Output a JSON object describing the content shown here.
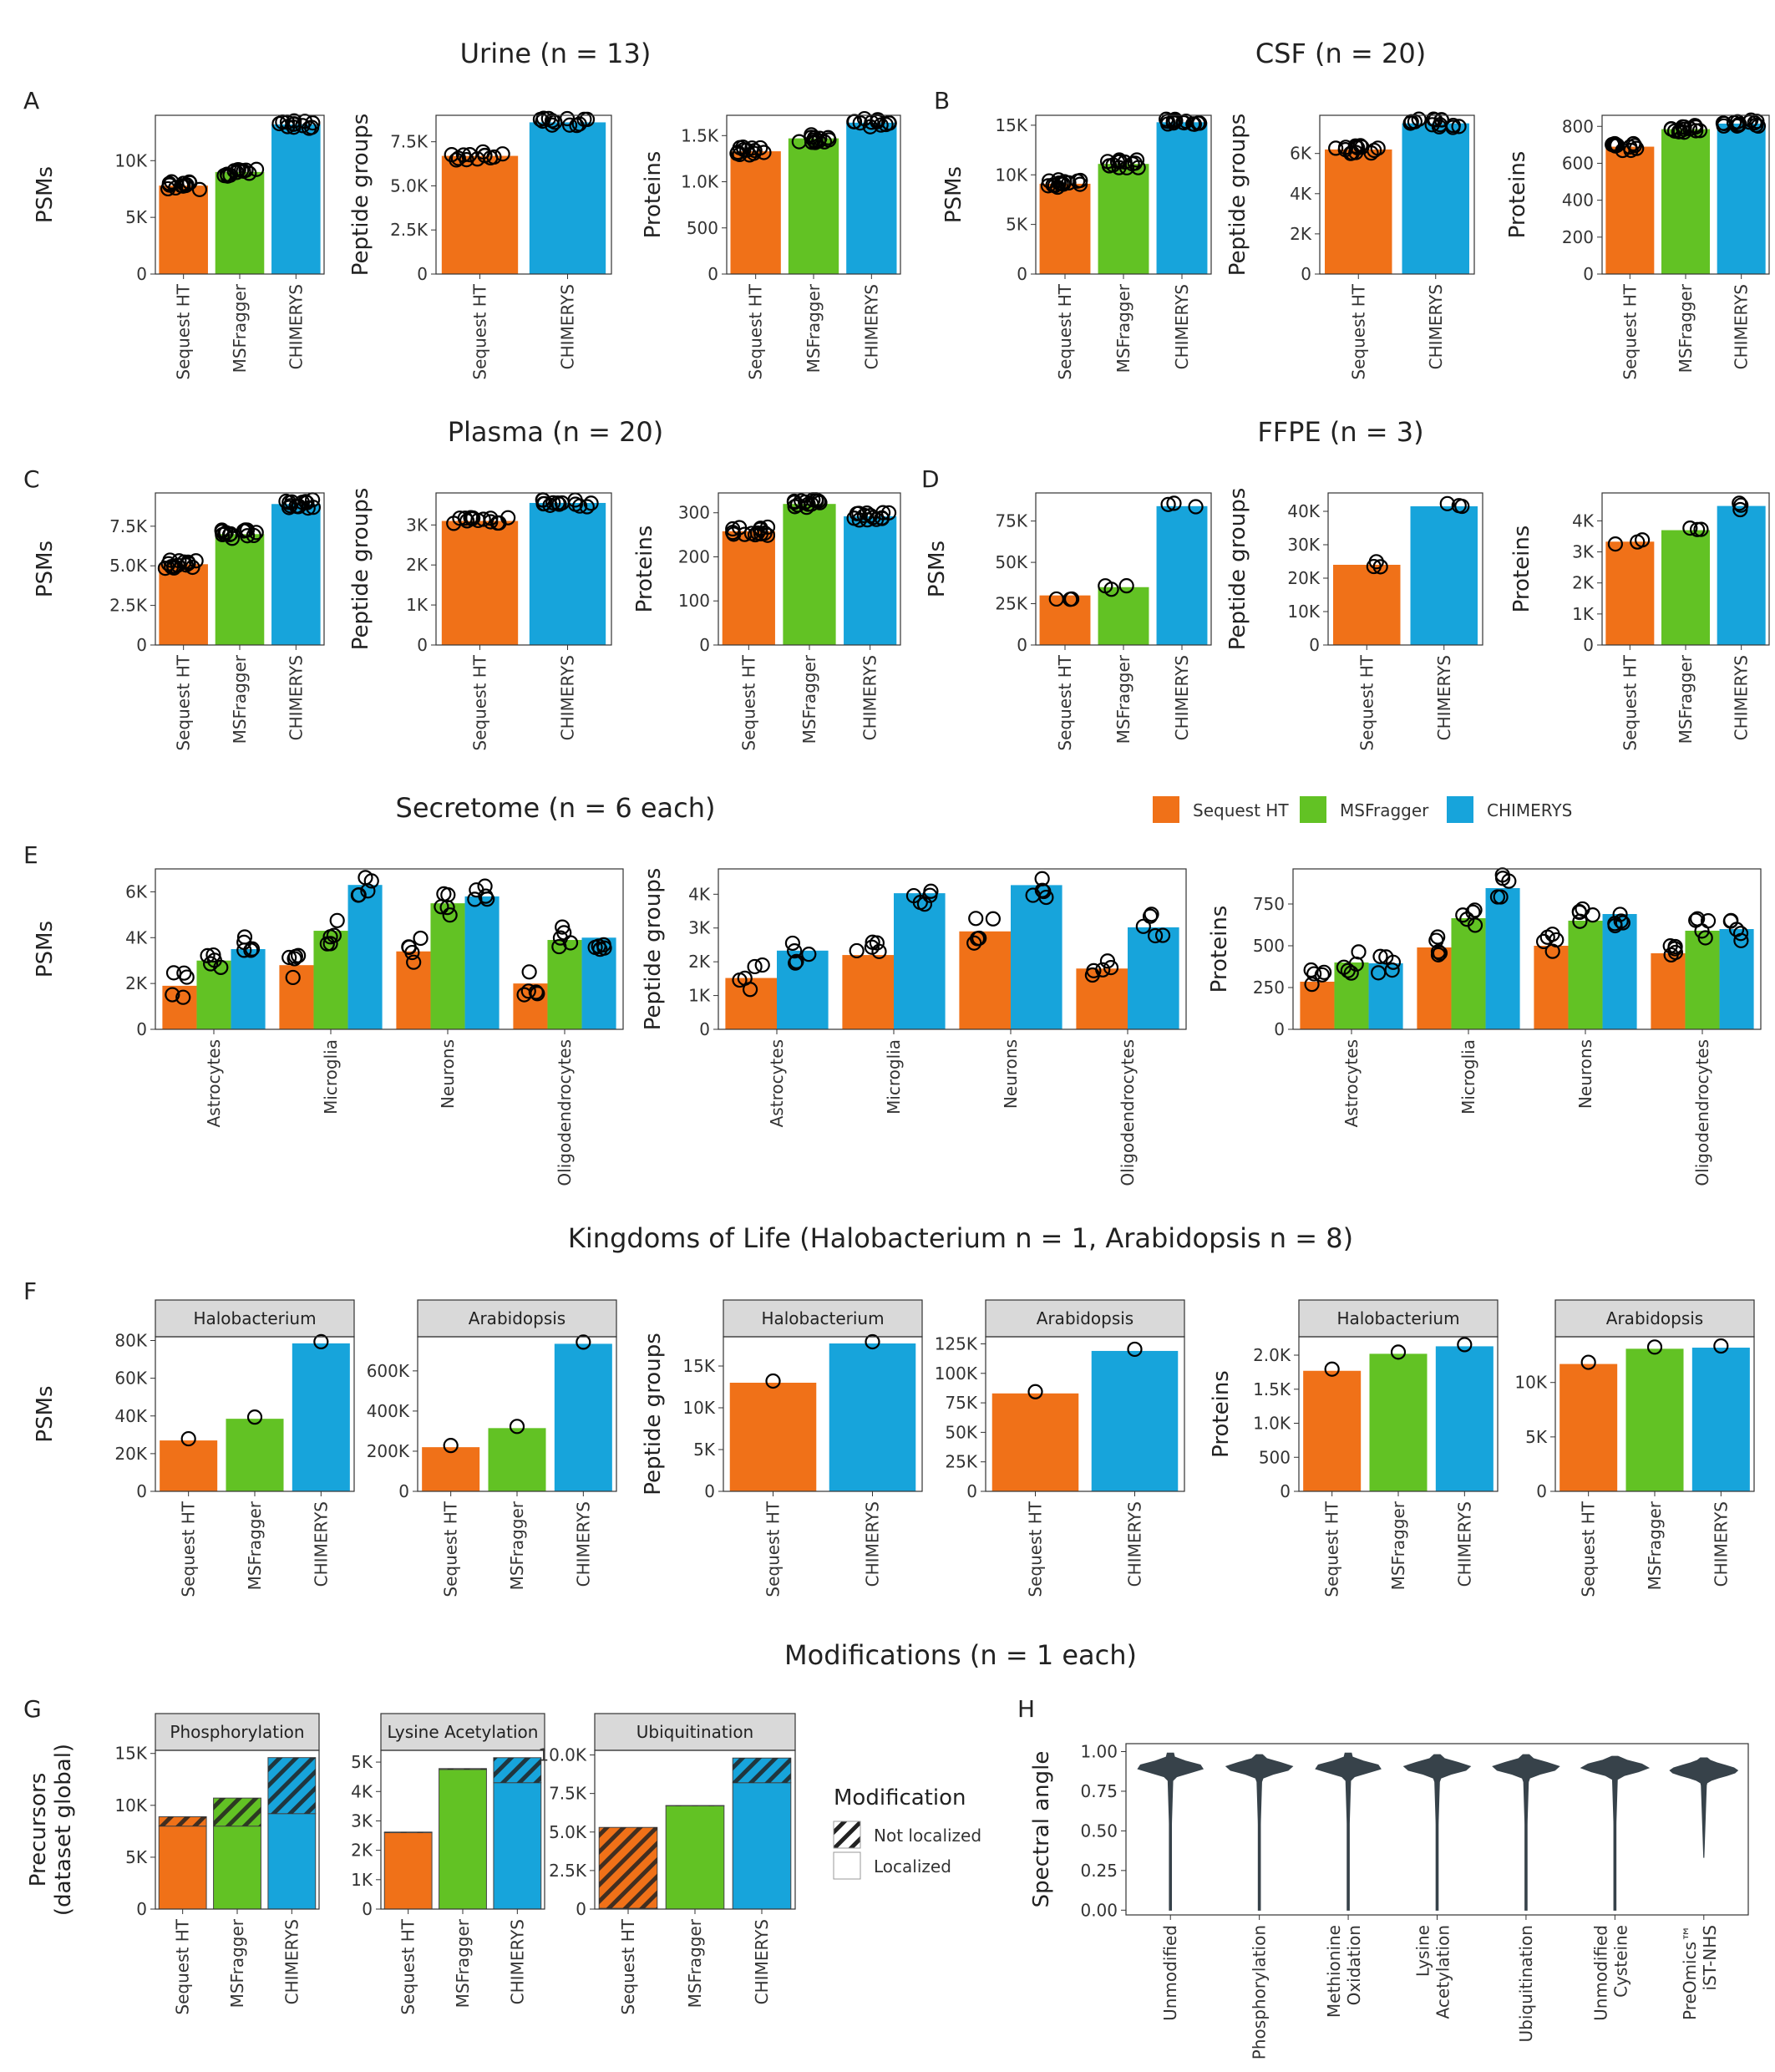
{
  "colors": {
    "sequest": "#F07118",
    "msfragger": "#62C224",
    "chimerys": "#17A4DB",
    "point": "#000000",
    "violin": "#37424A"
  },
  "titles": {
    "urine": "Urine (n = 13)",
    "csf": "CSF (n = 20)",
    "plasma": "Plasma (n = 20)",
    "ffpe": "FFPE (n = 3)",
    "secretome": "Secretome (n = 6 each)",
    "kingdoms": "Kingdoms of Life (Halobacterium n = 1, Arabidopsis n = 8)",
    "modifications": "Modifications (n = 1 each)"
  },
  "letters": {
    "A": "A",
    "B": "B",
    "C": "C",
    "D": "D",
    "E": "E",
    "F": "F",
    "G": "G",
    "H": "H"
  },
  "legend_tools": {
    "sequest": "Sequest HT",
    "msfragger": "MSFragger",
    "chimerys": "CHIMERYS"
  },
  "legend_mod": {
    "title": "Modification",
    "not_localized": "Not localized",
    "localized": "Localized"
  },
  "chart_data": [
    {
      "id": "A1",
      "panel": "A",
      "type": "bar",
      "ylabel": "PSMs",
      "categories": [
        "Sequest HT",
        "MSFragger",
        "CHIMERYS"
      ],
      "values": [
        7800,
        9000,
        13200
      ],
      "ticks": [
        0,
        5000,
        10000
      ],
      "tick_labels": [
        "0",
        "5K",
        "10K"
      ],
      "ylim": [
        0,
        14000
      ]
    },
    {
      "id": "A2",
      "panel": "A",
      "type": "bar",
      "ylabel": "Peptide groups",
      "categories": [
        "Sequest HT",
        "CHIMERYS"
      ],
      "values": [
        6700,
        8600
      ],
      "ticks": [
        0,
        2500,
        5000,
        7500
      ],
      "tick_labels": [
        "0",
        "2.5K",
        "5.0K",
        "7.5K"
      ],
      "ylim": [
        0,
        9000
      ]
    },
    {
      "id": "A3",
      "panel": "A",
      "type": "bar",
      "ylabel": "Proteins",
      "categories": [
        "Sequest HT",
        "MSFragger",
        "CHIMERYS"
      ],
      "values": [
        1330,
        1470,
        1640
      ],
      "ticks": [
        0,
        500,
        1000,
        1500
      ],
      "tick_labels": [
        "0",
        "500",
        "1.0K",
        "1.5K"
      ],
      "ylim": [
        0,
        1720
      ]
    },
    {
      "id": "B1",
      "panel": "B",
      "type": "bar",
      "ylabel": "PSMs",
      "categories": [
        "Sequest HT",
        "MSFragger",
        "CHIMERYS"
      ],
      "values": [
        9100,
        11100,
        15300
      ],
      "ticks": [
        0,
        5000,
        10000,
        15000
      ],
      "tick_labels": [
        "0",
        "5K",
        "10K",
        "15K"
      ],
      "ylim": [
        0,
        16000
      ]
    },
    {
      "id": "B2",
      "panel": "B",
      "type": "bar",
      "ylabel": "Peptide groups",
      "categories": [
        "Sequest HT",
        "CHIMERYS"
      ],
      "values": [
        6200,
        7500
      ],
      "ticks": [
        0,
        2000,
        4000,
        6000
      ],
      "tick_labels": [
        "0",
        "2K",
        "4K",
        "6K"
      ],
      "ylim": [
        0,
        7900
      ]
    },
    {
      "id": "B3",
      "panel": "B",
      "type": "bar",
      "ylabel": "Proteins",
      "categories": [
        "Sequest HT",
        "MSFragger",
        "CHIMERYS"
      ],
      "values": [
        690,
        785,
        815
      ],
      "ticks": [
        0,
        200,
        400,
        600,
        800
      ],
      "tick_labels": [
        "0",
        "200",
        "400",
        "600",
        "800"
      ],
      "ylim": [
        0,
        860
      ]
    },
    {
      "id": "C1",
      "panel": "C",
      "type": "bar",
      "ylabel": "PSMs",
      "categories": [
        "Sequest HT",
        "MSFragger",
        "CHIMERYS"
      ],
      "values": [
        5100,
        7000,
        8900
      ],
      "ticks": [
        0,
        2500,
        5000,
        7500
      ],
      "tick_labels": [
        "0",
        "2.5K",
        "5.0K",
        "7.5K"
      ],
      "ylim": [
        0,
        9600
      ]
    },
    {
      "id": "C2",
      "panel": "C",
      "type": "bar",
      "ylabel": "Peptide groups",
      "categories": [
        "Sequest HT",
        "CHIMERYS"
      ],
      "values": [
        3100,
        3550
      ],
      "ticks": [
        0,
        1000,
        2000,
        3000
      ],
      "tick_labels": [
        "0",
        "1K",
        "2K",
        "3K"
      ],
      "ylim": [
        0,
        3800
      ]
    },
    {
      "id": "C3",
      "panel": "C",
      "type": "bar",
      "ylabel": "Proteins",
      "categories": [
        "Sequest HT",
        "MSFragger",
        "CHIMERYS"
      ],
      "values": [
        258,
        320,
        292
      ],
      "ticks": [
        0,
        100,
        200,
        300
      ],
      "tick_labels": [
        "0",
        "100",
        "200",
        "300"
      ],
      "ylim": [
        0,
        345
      ]
    },
    {
      "id": "D1",
      "panel": "D",
      "type": "bar",
      "ylabel": "PSMs",
      "categories": [
        "Sequest HT",
        "MSFragger",
        "CHIMERYS"
      ],
      "values": [
        30000,
        35000,
        84000
      ],
      "ticks": [
        0,
        25000,
        50000,
        75000
      ],
      "tick_labels": [
        "0",
        "25K",
        "50K",
        "75K"
      ],
      "ylim": [
        0,
        92000
      ]
    },
    {
      "id": "D2",
      "panel": "D",
      "type": "bar",
      "ylabel": "Peptide groups",
      "categories": [
        "Sequest HT",
        "CHIMERYS"
      ],
      "values": [
        24000,
        41500
      ],
      "ticks": [
        0,
        10000,
        20000,
        30000,
        40000
      ],
      "tick_labels": [
        "0",
        "10K",
        "20K",
        "30K",
        "40K"
      ],
      "ylim": [
        0,
        45500
      ]
    },
    {
      "id": "D3",
      "panel": "D",
      "type": "bar",
      "ylabel": "Proteins",
      "categories": [
        "Sequest HT",
        "MSFragger",
        "CHIMERYS"
      ],
      "values": [
        3330,
        3700,
        4480
      ],
      "ticks": [
        0,
        1000,
        2000,
        3000,
        4000
      ],
      "tick_labels": [
        "0",
        "1K",
        "2K",
        "3K",
        "4K"
      ],
      "ylim": [
        0,
        4900
      ]
    },
    {
      "id": "E1",
      "panel": "E",
      "type": "bar",
      "ylabel": "PSMs",
      "categories": [
        "Astrocytes",
        "Microglia",
        "Neurons",
        "Oligodendrocytes"
      ],
      "series": [
        {
          "name": "Sequest HT",
          "values": [
            1900,
            2800,
            3400,
            2000
          ]
        },
        {
          "name": "MSFragger",
          "values": [
            3000,
            4300,
            5500,
            3900
          ]
        },
        {
          "name": "CHIMERYS",
          "values": [
            3500,
            6300,
            5800,
            4000
          ]
        }
      ],
      "ticks": [
        0,
        2000,
        4000,
        6000
      ],
      "tick_labels": [
        "0",
        "2K",
        "4K",
        "6K"
      ],
      "ylim": [
        0,
        7000
      ]
    },
    {
      "id": "E2",
      "panel": "E",
      "type": "bar",
      "ylabel": "Peptide groups",
      "categories": [
        "Astrocytes",
        "Microglia",
        "Neurons",
        "Oligodendrocytes"
      ],
      "series": [
        {
          "name": "Sequest HT",
          "values": [
            1520,
            2200,
            2900,
            1800
          ]
        },
        {
          "name": "CHIMERYS",
          "values": [
            2330,
            4030,
            4270,
            3020
          ]
        }
      ],
      "ticks": [
        0,
        1000,
        2000,
        3000,
        4000
      ],
      "tick_labels": [
        "0",
        "1K",
        "2K",
        "3K",
        "4K"
      ],
      "ylim": [
        0,
        4750
      ]
    },
    {
      "id": "E3",
      "panel": "E",
      "type": "bar",
      "ylabel": "Proteins",
      "categories": [
        "Astrocytes",
        "Microglia",
        "Neurons",
        "Oligodendrocytes"
      ],
      "series": [
        {
          "name": "Sequest HT",
          "values": [
            285,
            490,
            500,
            455
          ]
        },
        {
          "name": "MSFragger",
          "values": [
            400,
            665,
            650,
            590
          ]
        },
        {
          "name": "CHIMERYS",
          "values": [
            395,
            845,
            690,
            600
          ]
        }
      ],
      "ticks": [
        0,
        250,
        500,
        750
      ],
      "tick_labels": [
        "0",
        "250",
        "500",
        "750"
      ],
      "ylim": [
        0,
        960
      ]
    },
    {
      "id": "F1",
      "panel": "F",
      "type": "bar",
      "strip": "Halobacterium",
      "ylabel": "PSMs",
      "categories": [
        "Sequest HT",
        "MSFragger",
        "CHIMERYS"
      ],
      "values": [
        27000,
        38500,
        78500
      ],
      "ticks": [
        0,
        20000,
        40000,
        60000,
        80000
      ],
      "tick_labels": [
        "0",
        "20K",
        "40K",
        "60K",
        "80K"
      ],
      "ylim": [
        0,
        82000
      ]
    },
    {
      "id": "F2",
      "panel": "F",
      "type": "bar",
      "strip": "Arabidopsis",
      "ylabel": "",
      "categories": [
        "Sequest HT",
        "MSFragger",
        "CHIMERYS"
      ],
      "values": [
        220000,
        315000,
        735000
      ],
      "ticks": [
        0,
        200000,
        400000,
        600000
      ],
      "tick_labels": [
        "0",
        "200K",
        "400K",
        "600K"
      ],
      "ylim": [
        0,
        770000
      ]
    },
    {
      "id": "F3",
      "panel": "F",
      "type": "bar",
      "strip": "Halobacterium",
      "ylabel": "Peptide groups",
      "categories": [
        "Sequest HT",
        "CHIMERYS"
      ],
      "values": [
        13000,
        17700
      ],
      "ticks": [
        0,
        5000,
        10000,
        15000
      ],
      "tick_labels": [
        "0",
        "5K",
        "10K",
        "15K"
      ],
      "ylim": [
        0,
        18500
      ]
    },
    {
      "id": "F4",
      "panel": "F",
      "type": "bar",
      "strip": "Arabidopsis",
      "ylabel": "",
      "categories": [
        "Sequest HT",
        "CHIMERYS"
      ],
      "values": [
        83000,
        119000
      ],
      "ticks": [
        0,
        25000,
        50000,
        75000,
        100000,
        125000
      ],
      "tick_labels": [
        "0",
        "25K",
        "50K",
        "75K",
        "100K",
        "125K"
      ],
      "ylim": [
        0,
        131000
      ]
    },
    {
      "id": "F5",
      "panel": "F",
      "type": "bar",
      "strip": "Halobacterium",
      "ylabel": "Proteins",
      "categories": [
        "Sequest HT",
        "MSFragger",
        "CHIMERYS"
      ],
      "values": [
        1770,
        2020,
        2130
      ],
      "ticks": [
        0,
        500,
        1000,
        1500,
        2000
      ],
      "tick_labels": [
        "0",
        "500",
        "1.0K",
        "1.5K",
        "2.0K"
      ],
      "ylim": [
        0,
        2270
      ]
    },
    {
      "id": "F6",
      "panel": "F",
      "type": "bar",
      "strip": "Arabidopsis",
      "ylabel": "",
      "categories": [
        "Sequest HT",
        "MSFragger",
        "CHIMERYS"
      ],
      "values": [
        11700,
        13100,
        13200
      ],
      "ticks": [
        0,
        5000,
        10000
      ],
      "tick_labels": [
        "0",
        "5K",
        "10K"
      ],
      "ylim": [
        0,
        14200
      ]
    },
    {
      "id": "G1",
      "panel": "G",
      "type": "stacked_bar",
      "strip": "Phosphorylation",
      "ylabel": "Precursors (dataset global)",
      "categories": [
        "Sequest HT",
        "MSFragger",
        "CHIMERYS"
      ],
      "localized": [
        8000,
        8000,
        9200
      ],
      "not_localized": [
        900,
        2700,
        5400
      ],
      "ticks": [
        0,
        5000,
        10000,
        15000
      ],
      "tick_labels": [
        "0",
        "5K",
        "10K",
        "15K"
      ],
      "ylim": [
        0,
        15300
      ]
    },
    {
      "id": "G2",
      "panel": "G",
      "type": "stacked_bar",
      "strip": "Lysine Acetylation",
      "ylabel": "",
      "categories": [
        "Sequest HT",
        "MSFragger",
        "CHIMERYS"
      ],
      "localized": [
        2600,
        4750,
        4300
      ],
      "not_localized": [
        20,
        30,
        850
      ],
      "ticks": [
        0,
        1000,
        2000,
        3000,
        4000,
        5000
      ],
      "tick_labels": [
        "0",
        "1K",
        "2K",
        "3K",
        "4K",
        "5K"
      ],
      "ylim": [
        0,
        5400
      ]
    },
    {
      "id": "G3",
      "panel": "G",
      "type": "stacked_bar",
      "strip": "Ubiquitination",
      "ylabel": "",
      "categories": [
        "Sequest HT",
        "MSFragger",
        "CHIMERYS"
      ],
      "localized": [
        50,
        6700,
        8200
      ],
      "not_localized": [
        5250,
        20,
        1600
      ],
      "ticks": [
        0,
        2500,
        5000,
        7500,
        10000
      ],
      "tick_labels": [
        "0",
        "2.5K",
        "5.0K",
        "7.5K",
        "10.0K"
      ],
      "ylim": [
        0,
        10300
      ]
    },
    {
      "id": "H",
      "panel": "H",
      "type": "violin",
      "ylabel": "Spectral angle",
      "categories": [
        "Unmodified",
        "Phosphorylation",
        "Methionine Oxidation",
        "Lysine Acetylation",
        "Ubiquitination",
        "Unmodified Cysteine",
        "PreOmics™ iST-NHS"
      ],
      "tick_labels": [
        "0.00",
        "0.25",
        "0.50",
        "0.75",
        "1.00"
      ],
      "ticks": [
        0,
        0.25,
        0.5,
        0.75,
        1.0
      ],
      "ylim": [
        -0.03,
        1.05
      ],
      "min": [
        0.0,
        0.0,
        0.0,
        0.0,
        0.0,
        0.0,
        0.33
      ],
      "max": [
        0.99,
        0.98,
        0.99,
        0.98,
        0.98,
        0.97,
        0.96
      ]
    }
  ]
}
